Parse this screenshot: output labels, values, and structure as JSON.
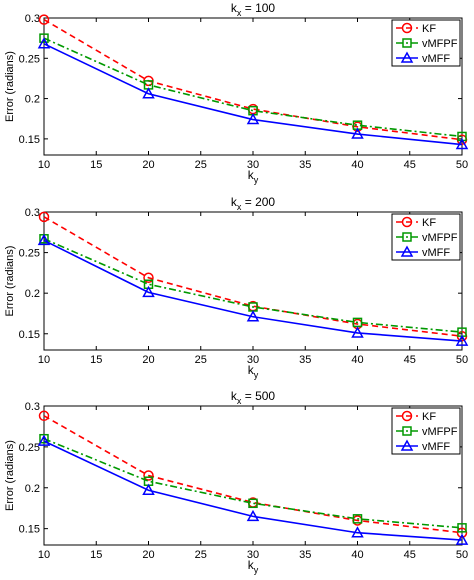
{
  "chart_data": [
    {
      "type": "line",
      "title_main": "k",
      "title_sub": "x",
      "title_rest": " = 100",
      "xlabel_main": "k",
      "xlabel_sub": "y",
      "ylabel": "Error (radians)",
      "x": [
        10,
        20,
        30,
        40,
        50
      ],
      "xlim": [
        10,
        50
      ],
      "ylim": [
        0.13,
        0.3
      ],
      "xticks": [
        "10",
        "15",
        "20",
        "25",
        "30",
        "35",
        "40",
        "45",
        "50"
      ],
      "yticks": [
        "0.15",
        "0.2",
        "0.25",
        "0.3"
      ],
      "legend_position": "top-right",
      "series": [
        {
          "name": "KF",
          "values": [
            0.298,
            0.222,
            0.187,
            0.165,
            0.149
          ],
          "color": "#ff0000",
          "marker": "circle",
          "dash": "dashed"
        },
        {
          "name": "vMFPF",
          "values": [
            0.275,
            0.217,
            0.185,
            0.167,
            0.153
          ],
          "color": "#009900",
          "marker": "square",
          "dash": "dashdot"
        },
        {
          "name": "vMFF",
          "values": [
            0.268,
            0.206,
            0.174,
            0.156,
            0.143
          ],
          "color": "#0000ff",
          "marker": "triangle",
          "dash": "solid"
        }
      ]
    },
    {
      "type": "line",
      "title_main": "k",
      "title_sub": "x",
      "title_rest": " = 200",
      "xlabel_main": "k",
      "xlabel_sub": "y",
      "ylabel": "Error (radians)",
      "x": [
        10,
        20,
        30,
        40,
        50
      ],
      "xlim": [
        10,
        50
      ],
      "ylim": [
        0.13,
        0.3
      ],
      "xticks": [
        "10",
        "15",
        "20",
        "25",
        "30",
        "35",
        "40",
        "45",
        "50"
      ],
      "yticks": [
        "0.15",
        "0.2",
        "0.25",
        "0.3"
      ],
      "legend_position": "top-right",
      "series": [
        {
          "name": "KF",
          "values": [
            0.294,
            0.219,
            0.184,
            0.162,
            0.147
          ],
          "color": "#ff0000",
          "marker": "circle",
          "dash": "dashed"
        },
        {
          "name": "vMFPF",
          "values": [
            0.267,
            0.211,
            0.183,
            0.164,
            0.152
          ],
          "color": "#009900",
          "marker": "square",
          "dash": "dashdot"
        },
        {
          "name": "vMFF",
          "values": [
            0.265,
            0.201,
            0.171,
            0.151,
            0.141
          ],
          "color": "#0000ff",
          "marker": "triangle",
          "dash": "solid"
        }
      ]
    },
    {
      "type": "line",
      "title_main": "k",
      "title_sub": "x",
      "title_rest": " = 500",
      "xlabel_main": "k",
      "xlabel_sub": "y",
      "ylabel": "Error (radians)",
      "x": [
        10,
        20,
        30,
        40,
        50
      ],
      "xlim": [
        10,
        50
      ],
      "ylim": [
        0.13,
        0.3
      ],
      "xticks": [
        "10",
        "15",
        "20",
        "25",
        "30",
        "35",
        "40",
        "45",
        "50"
      ],
      "yticks": [
        "0.15",
        "0.2",
        "0.25",
        "0.3"
      ],
      "legend_position": "top-right",
      "series": [
        {
          "name": "KF",
          "values": [
            0.288,
            0.215,
            0.182,
            0.16,
            0.145
          ],
          "color": "#ff0000",
          "marker": "circle",
          "dash": "dashed"
        },
        {
          "name": "vMFPF",
          "values": [
            0.26,
            0.208,
            0.181,
            0.162,
            0.151
          ],
          "color": "#009900",
          "marker": "square",
          "dash": "dashdot"
        },
        {
          "name": "vMFF",
          "values": [
            0.257,
            0.197,
            0.165,
            0.145,
            0.136
          ],
          "color": "#0000ff",
          "marker": "triangle",
          "dash": "solid"
        }
      ]
    }
  ]
}
